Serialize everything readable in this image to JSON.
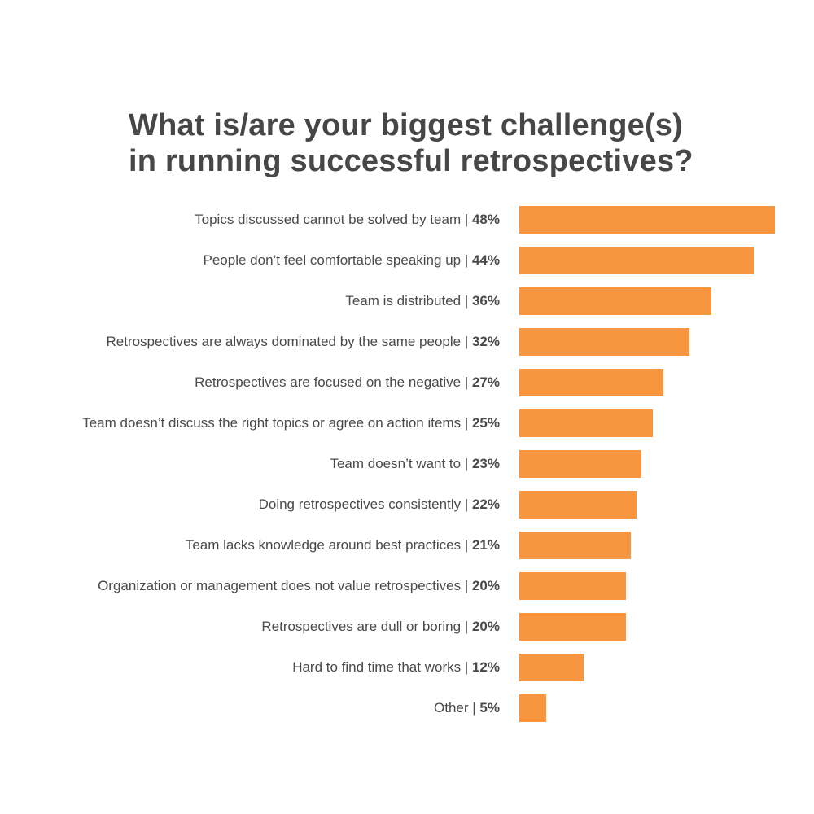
{
  "colors": {
    "bar": "#F7963F",
    "title": "#474747",
    "label": "#4a4a4a"
  },
  "chart_data": {
    "type": "bar",
    "orientation": "horizontal",
    "title_lines": [
      "What is/are your biggest challenge(s)",
      "in running successful retrospectives?"
    ],
    "unit": "%",
    "xlim": [
      0,
      48
    ],
    "grid": false,
    "legend": "none",
    "categories": [
      "Topics discussed cannot be solved by team",
      "People don’t feel comfortable speaking up",
      "Team is distributed",
      "Retrospectives are always dominated by the same people",
      "Retrospectives are focused on the negative",
      "Team doesn’t discuss the right topics or agree on action items",
      "Team doesn’t want to",
      "Doing retrospectives consistently ",
      "Team lacks knowledge around best practices",
      "Organization or management does not value retrospectives",
      "Retrospectives are dull or boring",
      "Hard to find time that works",
      "Other"
    ],
    "values": [
      48,
      44,
      36,
      32,
      27,
      25,
      23,
      22,
      21,
      20,
      20,
      12,
      5
    ]
  }
}
